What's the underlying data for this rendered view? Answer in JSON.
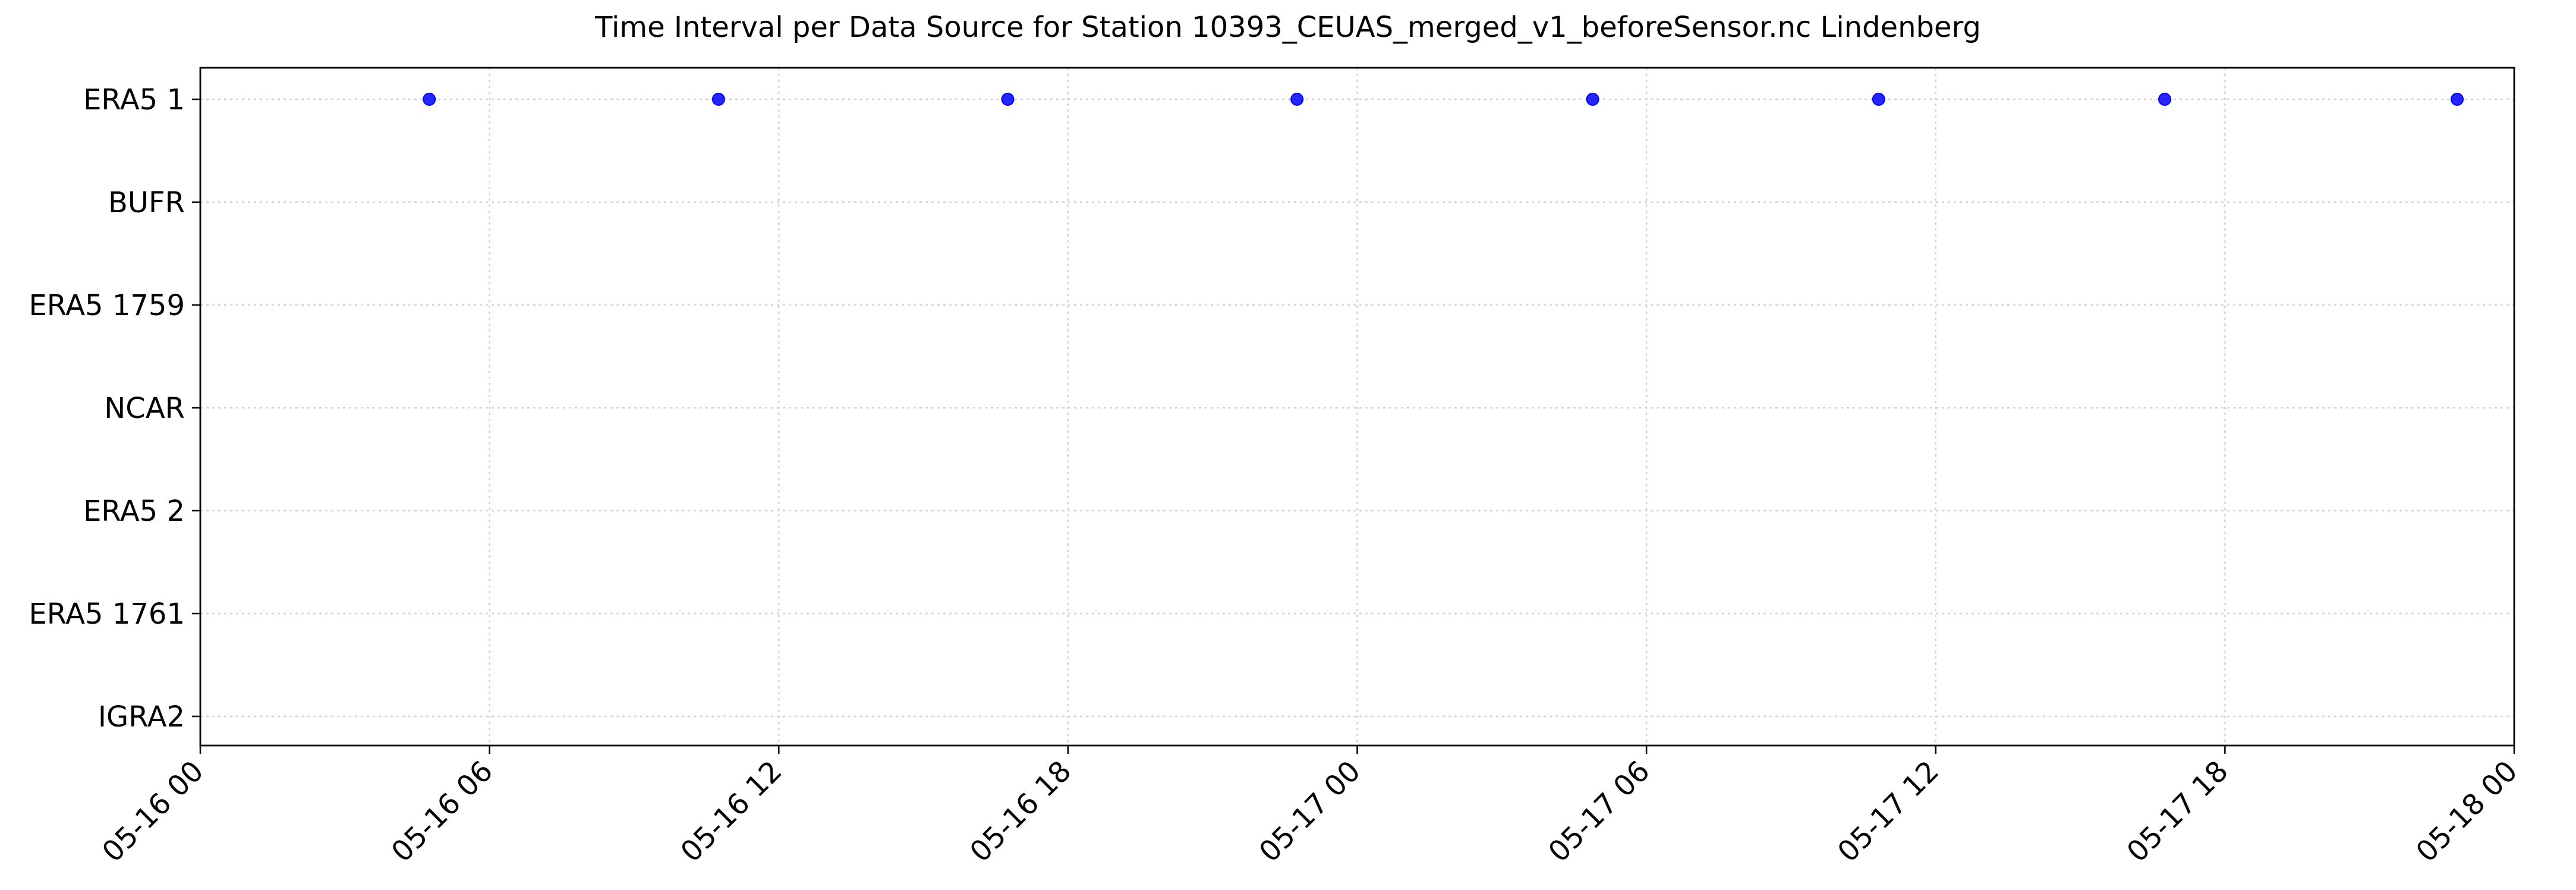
{
  "chart_data": {
    "type": "scatter",
    "title": "Time Interval per Data Source for Station 10393_CEUAS_merged_v1_beforeSensor.nc Lindenberg",
    "xlabel": "",
    "ylabel": "",
    "categories": [
      "ERA5 1",
      "BUFR",
      "ERA5 1759",
      "NCAR",
      "ERA5 2",
      "ERA5 1761",
      "IGRA2"
    ],
    "xlim": [
      "2023-05-16 00:00",
      "2023-05-18 00:00"
    ],
    "x_tick_labels": [
      "05-16 00",
      "05-16 06",
      "05-16 12",
      "05-16 18",
      "05-17 00",
      "05-17 06",
      "05-17 12",
      "05-17 18",
      "05-18 00"
    ],
    "grid": true,
    "point_color": "#0000ff",
    "series": [
      {
        "category": "ERA5 1",
        "x": [
          "2023-05-16 04:45",
          "2023-05-16 10:45",
          "2023-05-16 16:45",
          "2023-05-16 22:45",
          "2023-05-17 04:53",
          "2023-05-17 10:49",
          "2023-05-17 16:45",
          "2023-05-17 22:49"
        ]
      }
    ]
  }
}
